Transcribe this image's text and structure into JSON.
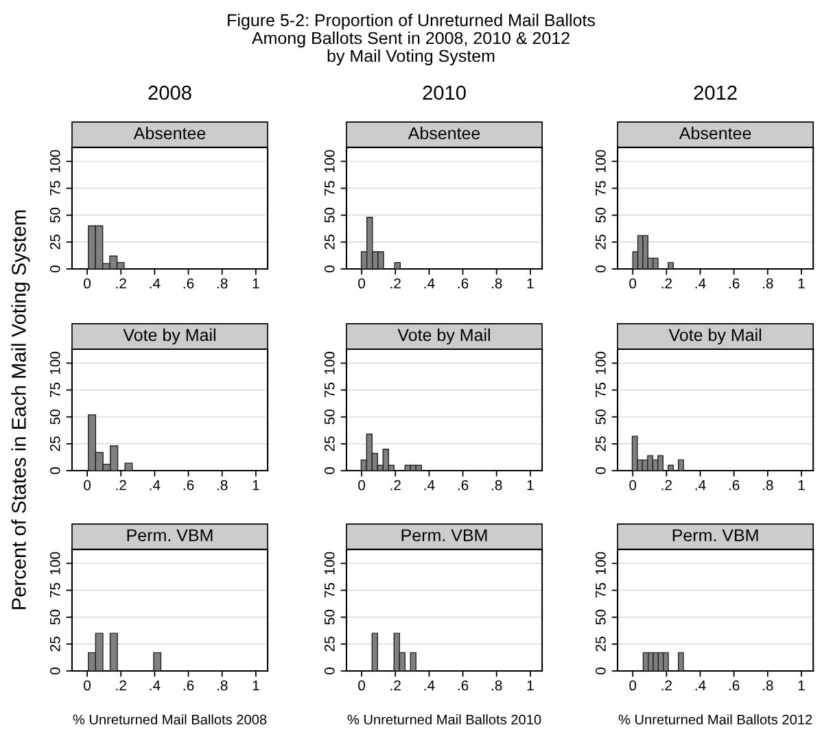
{
  "chart_data": [
    {
      "type": "histogram",
      "title": "Absentee",
      "subtitle": "2008",
      "annotations": [
        "Figure 5-2: Proportion of Unreturned Mail Ballots\nAmong Ballots Sent in 2008, 2010 & 2012\nby Mail Voting System"
      ],
      "bins": [
        0.007,
        0.049,
        0.092,
        0.134,
        0.177,
        0.219
      ],
      "values": [
        40,
        40,
        5,
        12,
        6
      ],
      "color": "#808080",
      "xlim": [
        -0.09,
        1.07
      ],
      "xticks": [
        0,
        {
          "value": 0.2,
          "label": ".2"
        },
        {
          "value": 0.4,
          "label": ".4"
        },
        {
          "value": 0.6,
          "label": ".6"
        },
        {
          "value": 0.8,
          "label": ".8"
        },
        1
      ],
      "ylim": [
        0,
        113
      ],
      "yticks": [
        0,
        25,
        50,
        75,
        100
      ],
      "grid": "y"
    },
    {
      "type": "histogram",
      "title": "Absentee",
      "subtitle": "2010",
      "bins": [
        -0.002,
        0.031,
        0.064,
        0.097,
        0.13,
        0.163,
        0.196,
        0.229
      ],
      "values": [
        16,
        48,
        16,
        16,
        0,
        0,
        6
      ],
      "color": "#808080",
      "xlim": [
        -0.09,
        1.07
      ],
      "xticks": [
        0,
        {
          "value": 0.2,
          "label": ".2"
        },
        {
          "value": 0.4,
          "label": ".4"
        },
        {
          "value": 0.6,
          "label": ".6"
        },
        {
          "value": 0.8,
          "label": ".8"
        },
        1
      ],
      "ylim": [
        0,
        113
      ],
      "yticks": [
        0,
        25,
        50,
        75,
        100
      ],
      "grid": "y"
    },
    {
      "type": "histogram",
      "title": "Absentee",
      "subtitle": "2012",
      "bins": [
        0,
        0.03,
        0.06,
        0.09,
        0.12,
        0.15,
        0.18,
        0.21,
        0.24
      ],
      "values": [
        16,
        31,
        31,
        10,
        10,
        0,
        0,
        6
      ],
      "color": "#808080",
      "xlim": [
        -0.09,
        1.07
      ],
      "xticks": [
        0,
        {
          "value": 0.2,
          "label": ".2"
        },
        {
          "value": 0.4,
          "label": ".4"
        },
        {
          "value": 0.6,
          "label": ".6"
        },
        {
          "value": 0.8,
          "label": ".8"
        },
        1
      ],
      "ylim": [
        0,
        113
      ],
      "yticks": [
        0,
        25,
        50,
        75,
        100
      ],
      "grid": "y"
    },
    {
      "type": "histogram",
      "title": "Vote by Mail",
      "ylabel": "Percent of States in Each Mail Voting System",
      "bins": [
        0.007,
        0.05,
        0.094,
        0.137,
        0.181,
        0.224,
        0.267
      ],
      "values": [
        52,
        17,
        6,
        23,
        0,
        7
      ],
      "color": "#808080",
      "xlim": [
        -0.09,
        1.07
      ],
      "xticks": [
        0,
        {
          "value": 0.2,
          "label": ".2"
        },
        {
          "value": 0.4,
          "label": ".4"
        },
        {
          "value": 0.6,
          "label": ".6"
        },
        {
          "value": 0.8,
          "label": ".8"
        },
        1
      ],
      "ylim": [
        0,
        113
      ],
      "yticks": [
        0,
        25,
        50,
        75,
        100
      ],
      "grid": "y"
    },
    {
      "type": "histogram",
      "title": "Vote by Mail",
      "bins": [
        -0.003,
        0.0295,
        0.062,
        0.0945,
        0.127,
        0.1595,
        0.192,
        0.2245,
        0.257,
        0.2895,
        0.322,
        0.3545
      ],
      "values": [
        10,
        34,
        16,
        5,
        20,
        5,
        0,
        0,
        5,
        5,
        5
      ],
      "color": "#808080",
      "xlim": [
        -0.09,
        1.07
      ],
      "xticks": [
        0,
        {
          "value": 0.2,
          "label": ".2"
        },
        {
          "value": 0.4,
          "label": ".4"
        },
        {
          "value": 0.6,
          "label": ".6"
        },
        {
          "value": 0.8,
          "label": ".8"
        },
        1
      ],
      "ylim": [
        0,
        113
      ],
      "yticks": [
        0,
        25,
        50,
        75,
        100
      ],
      "grid": "y"
    },
    {
      "type": "histogram",
      "title": "Vote by Mail",
      "bins": [
        -0.003,
        0.0274,
        0.0578,
        0.0882,
        0.1186,
        0.149,
        0.1794,
        0.2098,
        0.2402,
        0.2706,
        0.301
      ],
      "values": [
        32,
        10,
        10,
        14,
        10,
        14,
        0,
        5,
        0,
        10
      ],
      "color": "#808080",
      "xlim": [
        -0.09,
        1.07
      ],
      "xticks": [
        0,
        {
          "value": 0.2,
          "label": ".2"
        },
        {
          "value": 0.4,
          "label": ".4"
        },
        {
          "value": 0.6,
          "label": ".6"
        },
        {
          "value": 0.8,
          "label": ".8"
        },
        1
      ],
      "ylim": [
        0,
        113
      ],
      "yticks": [
        0,
        25,
        50,
        75,
        100
      ],
      "grid": "y"
    },
    {
      "type": "histogram",
      "title": "Perm. VBM",
      "xlabel": "% Unreturned Mail Ballots 2008",
      "bins": [
        0.007,
        0.05,
        0.093,
        0.136,
        0.179,
        0.222,
        0.265,
        0.308,
        0.351,
        0.394,
        0.437
      ],
      "values": [
        17,
        35,
        0,
        35,
        0,
        0,
        0,
        0,
        0,
        17
      ],
      "color": "#808080",
      "xlim": [
        -0.09,
        1.07
      ],
      "xticks": [
        0,
        {
          "value": 0.2,
          "label": ".2"
        },
        {
          "value": 0.4,
          "label": ".4"
        },
        {
          "value": 0.6,
          "label": ".6"
        },
        {
          "value": 0.8,
          "label": ".8"
        },
        1
      ],
      "ylim": [
        0,
        113
      ],
      "yticks": [
        0,
        25,
        50,
        75,
        100
      ],
      "grid": "y"
    },
    {
      "type": "histogram",
      "title": "Perm. VBM",
      "xlabel": "% Unreturned Mail Ballots 2010",
      "bins": [
        0.062,
        0.0945,
        0.127,
        0.1595,
        0.192,
        0.2245,
        0.257,
        0.2895,
        0.322
      ],
      "values": [
        35,
        0,
        0,
        0,
        35,
        17,
        0,
        17
      ],
      "color": "#808080",
      "xlim": [
        -0.09,
        1.07
      ],
      "xticks": [
        0,
        {
          "value": 0.2,
          "label": ".2"
        },
        {
          "value": 0.4,
          "label": ".4"
        },
        {
          "value": 0.6,
          "label": ".6"
        },
        {
          "value": 0.8,
          "label": ".8"
        },
        1
      ],
      "ylim": [
        0,
        113
      ],
      "yticks": [
        0,
        25,
        50,
        75,
        100
      ],
      "grid": "y"
    },
    {
      "type": "histogram",
      "title": "Perm. VBM",
      "xlabel": "% Unreturned Mail Ballots 2012",
      "bins": [
        0.062,
        0.0918,
        0.1216,
        0.1514,
        0.1812,
        0.211,
        0.2408,
        0.2706,
        0.3004
      ],
      "values": [
        17,
        17,
        17,
        17,
        17,
        0,
        0,
        17
      ],
      "color": "#808080",
      "xlim": [
        -0.09,
        1.07
      ],
      "xticks": [
        0,
        {
          "value": 0.2,
          "label": ".2"
        },
        {
          "value": 0.4,
          "label": ".4"
        },
        {
          "value": 0.6,
          "label": ".6"
        },
        {
          "value": 0.8,
          "label": ".8"
        },
        1
      ],
      "ylim": [
        0,
        113
      ],
      "yticks": [
        0,
        25,
        50,
        75,
        100
      ],
      "grid": "y"
    }
  ]
}
